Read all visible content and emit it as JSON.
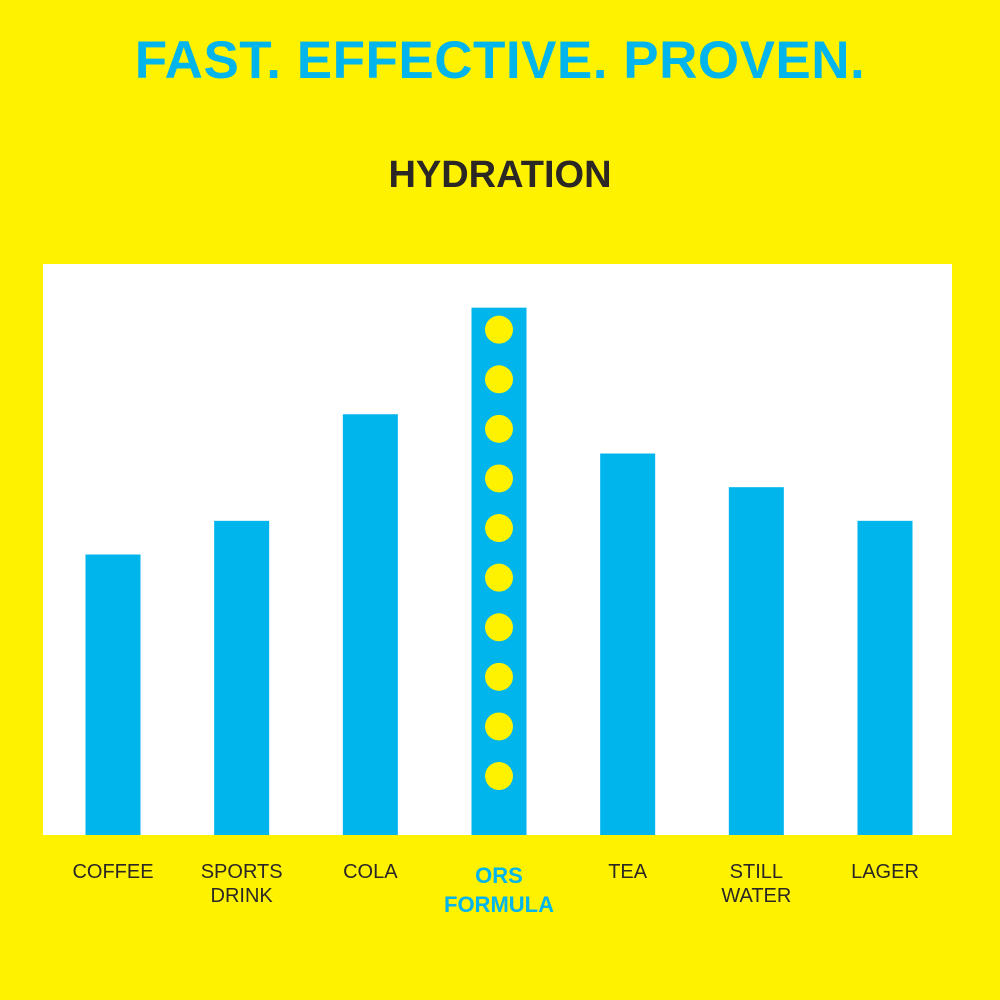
{
  "headline": "FAST. EFFECTIVE. PROVEN.",
  "colors": {
    "background": "#FFF200",
    "bar": "#00B4EC",
    "dot": "#FFF200",
    "panel": "#FFFFFF",
    "text": "#2B2725",
    "highlight_text": "#00B4EC"
  },
  "chart_data": {
    "type": "bar",
    "title": "HYDRATION",
    "xlabel": "",
    "ylabel": "",
    "ylim": [
      0,
      100
    ],
    "grid": false,
    "legend": "none",
    "categories": [
      "COFFEE",
      "SPORTS\nDRINK",
      "COLA",
      "ORS\nFORMULA",
      "TEA",
      "STILL\nWATER",
      "LAGER"
    ],
    "values": [
      50,
      56,
      75,
      94,
      68,
      62,
      56
    ],
    "highlight": "ORS\nFORMULA",
    "highlight_pattern": "dots"
  }
}
